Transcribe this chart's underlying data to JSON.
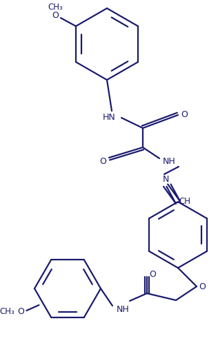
{
  "bg_color": "#ffffff",
  "line_color": "#1a1a6e",
  "line_width": 1.6,
  "figsize": [
    3.16,
    5.02
  ],
  "dpi": 100,
  "xlim": [
    0,
    316
  ],
  "ylim": [
    0,
    502
  ]
}
